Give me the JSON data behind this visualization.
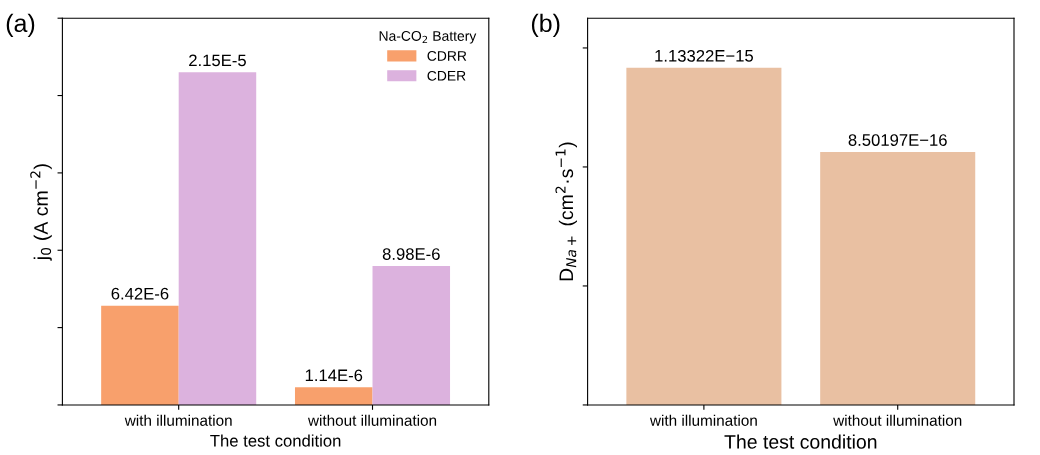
{
  "chart_data": [
    {
      "type": "bar",
      "title": "(a)",
      "xlabel": "The test condition",
      "ylabel": "j$_{0}$ (A cm$^{−2}$)",
      "legend_title": "Na-CO$_{2}$ Battery",
      "legend": "top right",
      "grid": false,
      "categories": [
        "with illumination",
        "without illumination"
      ],
      "series": [
        {
          "name": "CDRR",
          "color": "#f8a06c",
          "values": [
            6.42e-06,
            1.14e-06
          ],
          "value_labels": [
            "6.42E-6",
            "1.14E-6"
          ]
        },
        {
          "name": "CDER",
          "color": "#dcb2de",
          "values": [
            2.15e-05,
            8.98e-06
          ],
          "value_labels": [
            "2.15E-5",
            "8.98E-6"
          ]
        }
      ],
      "ylim": [
        0,
        2.5e-05
      ],
      "yticks": [
        {
          "value": 0,
          "label": null
        },
        {
          "value": 5e-06,
          "label": null
        },
        {
          "value": 1e-05,
          "label": null
        },
        {
          "value": 1.5e-05,
          "label": null
        },
        {
          "value": 2e-05,
          "label": null
        },
        {
          "value": 2.5e-05,
          "label": null
        }
      ],
      "tick_labels": "x"
    },
    {
      "type": "bar",
      "title": "(b)",
      "xlabel": "The test condition",
      "ylabel": "D$_{Na+}$ (cm$^{2}$·s$^{−1}$)",
      "grid": false,
      "categories": [
        "with illumination",
        "without illumination"
      ],
      "series": [
        {
          "color": "#e9c0a2",
          "values": [
            1.13322e-15,
            8.50197e-16
          ],
          "value_labels": [
            "1.13322E−15",
            "8.50197E−16"
          ]
        }
      ],
      "ylim": [
        0,
        1.3e-15
      ],
      "yticks": [
        {
          "value": 0,
          "label": null
        },
        {
          "value": 4e-16,
          "label": null
        },
        {
          "value": 8e-16,
          "label": null
        },
        {
          "value": 1.2e-15,
          "label": null
        }
      ],
      "tick_labels": "x"
    }
  ]
}
